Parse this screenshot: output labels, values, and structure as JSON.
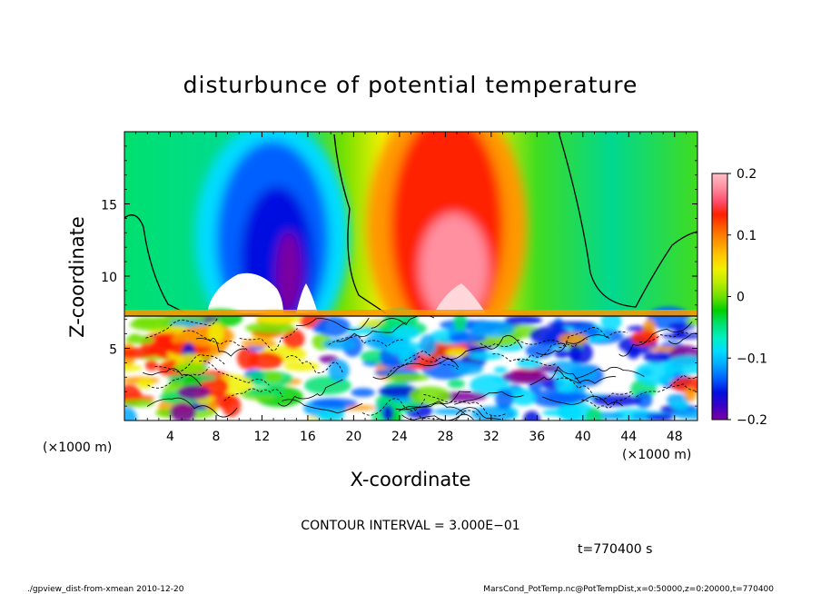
{
  "chart_data": {
    "type": "heatmap",
    "title": "disturbunce of potential temperature",
    "xlabel": "X-coordinate",
    "ylabel": "Z-coordinate",
    "x_unit": "(×1000 m)",
    "xlim": [
      0,
      50
    ],
    "ylim": [
      0,
      20
    ],
    "x_ticks": [
      4,
      8,
      12,
      16,
      20,
      24,
      28,
      32,
      36,
      40,
      44,
      48
    ],
    "y_ticks": [
      5,
      10,
      15
    ],
    "colorbar": {
      "range": [
        -0.2,
        0.2
      ],
      "tick_labels": [
        "0.2",
        "0.1",
        "0",
        "−0.1",
        "−0.2"
      ],
      "tick_values": [
        0.2,
        0.1,
        0,
        -0.1,
        -0.2
      ],
      "colors": [
        "#7a00a0",
        "#3b00c8",
        "#0010e0",
        "#0060ff",
        "#00a8ff",
        "#00dcff",
        "#00f0c0",
        "#00e070",
        "#00d000",
        "#70e000",
        "#b8ec00",
        "#f0f000",
        "#ffc800",
        "#ff9600",
        "#ff6000",
        "#ff2000",
        "#ff5070",
        "#ff90a0",
        "#ffc0c8"
      ]
    },
    "contour_interval_text": "CONTOUR INTERVAL = 3.000E−01",
    "time_text": "t=770400  s",
    "field": {
      "upper_layer": [
        {
          "x_center": 14,
          "z_center": 12,
          "value": -0.2,
          "note": "negative anomaly column"
        },
        {
          "x_center": 29,
          "z_center": 14,
          "value": 0.2,
          "note": "positive anomaly column"
        }
      ],
      "lower_layer_top_z": 7.5
    }
  },
  "footer": {
    "left": "./gpview_dist-from-xmean   2010-12-20",
    "right": "MarsCond_PotTemp.nc@PotTempDist,x=0:50000,z=0:20000,t=770400"
  }
}
